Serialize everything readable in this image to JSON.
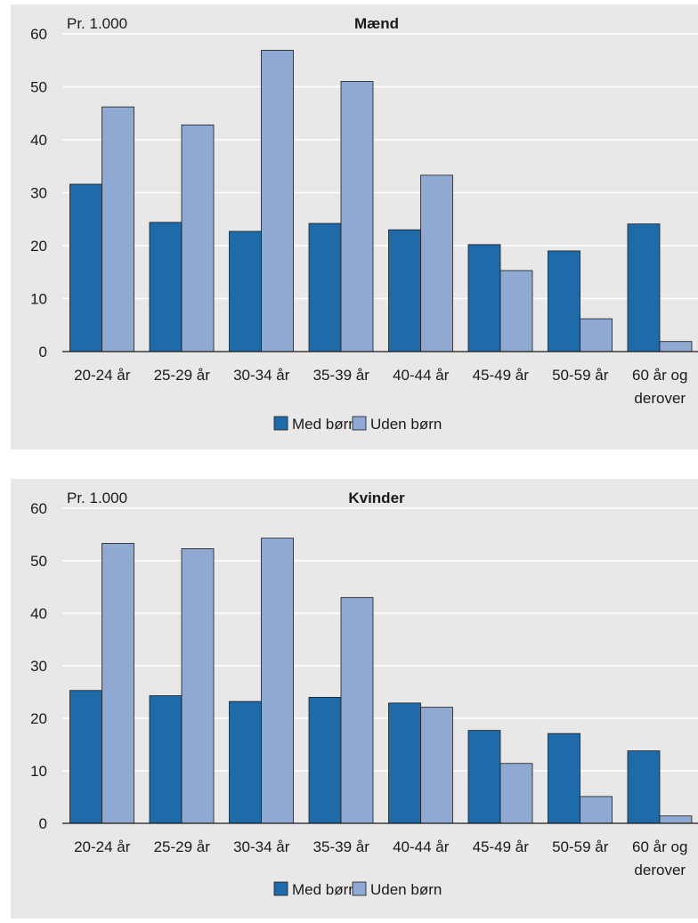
{
  "chart_data": [
    {
      "type": "bar",
      "title": "Mænd",
      "unit_label": "Pr. 1.000",
      "categories": [
        [
          "20-24 år"
        ],
        [
          "25-29 år"
        ],
        [
          "30-34 år"
        ],
        [
          "35-39 år"
        ],
        [
          "40-44 år"
        ],
        [
          "45-49 år"
        ],
        [
          "50-59 år"
        ],
        [
          "60 år og",
          "derover"
        ]
      ],
      "yticks": [
        0,
        10,
        20,
        30,
        40,
        50,
        60
      ],
      "ylim": [
        0,
        60
      ],
      "grid": true,
      "legend_position": "bottom",
      "series": [
        {
          "name": "Med børn",
          "color": "#1f6aa9",
          "values": [
            31.6,
            24.4,
            22.7,
            24.2,
            23.0,
            20.2,
            19.0,
            24.1
          ]
        },
        {
          "name": "Uden børn",
          "color": "#8fa9d2",
          "values": [
            46.2,
            42.8,
            56.9,
            51.0,
            33.3,
            15.3,
            6.2,
            1.9
          ]
        }
      ]
    },
    {
      "type": "bar",
      "title": "Kvinder",
      "unit_label": "Pr. 1.000",
      "categories": [
        [
          "20-24 år"
        ],
        [
          "25-29 år"
        ],
        [
          "30-34 år"
        ],
        [
          "35-39 år"
        ],
        [
          "40-44 år"
        ],
        [
          "45-49 år"
        ],
        [
          "50-59 år"
        ],
        [
          "60 år og",
          "derover"
        ]
      ],
      "yticks": [
        0,
        10,
        20,
        30,
        40,
        50,
        60
      ],
      "ylim": [
        0,
        60
      ],
      "grid": true,
      "legend_position": "bottom",
      "series": [
        {
          "name": "Med børn",
          "color": "#1f6aa9",
          "values": [
            25.3,
            24.3,
            23.2,
            24.0,
            22.9,
            17.7,
            17.1,
            13.8
          ]
        },
        {
          "name": "Uden børn",
          "color": "#8fa9d2",
          "values": [
            53.3,
            52.3,
            54.3,
            43.0,
            22.1,
            11.4,
            5.1,
            1.4
          ]
        }
      ]
    }
  ]
}
